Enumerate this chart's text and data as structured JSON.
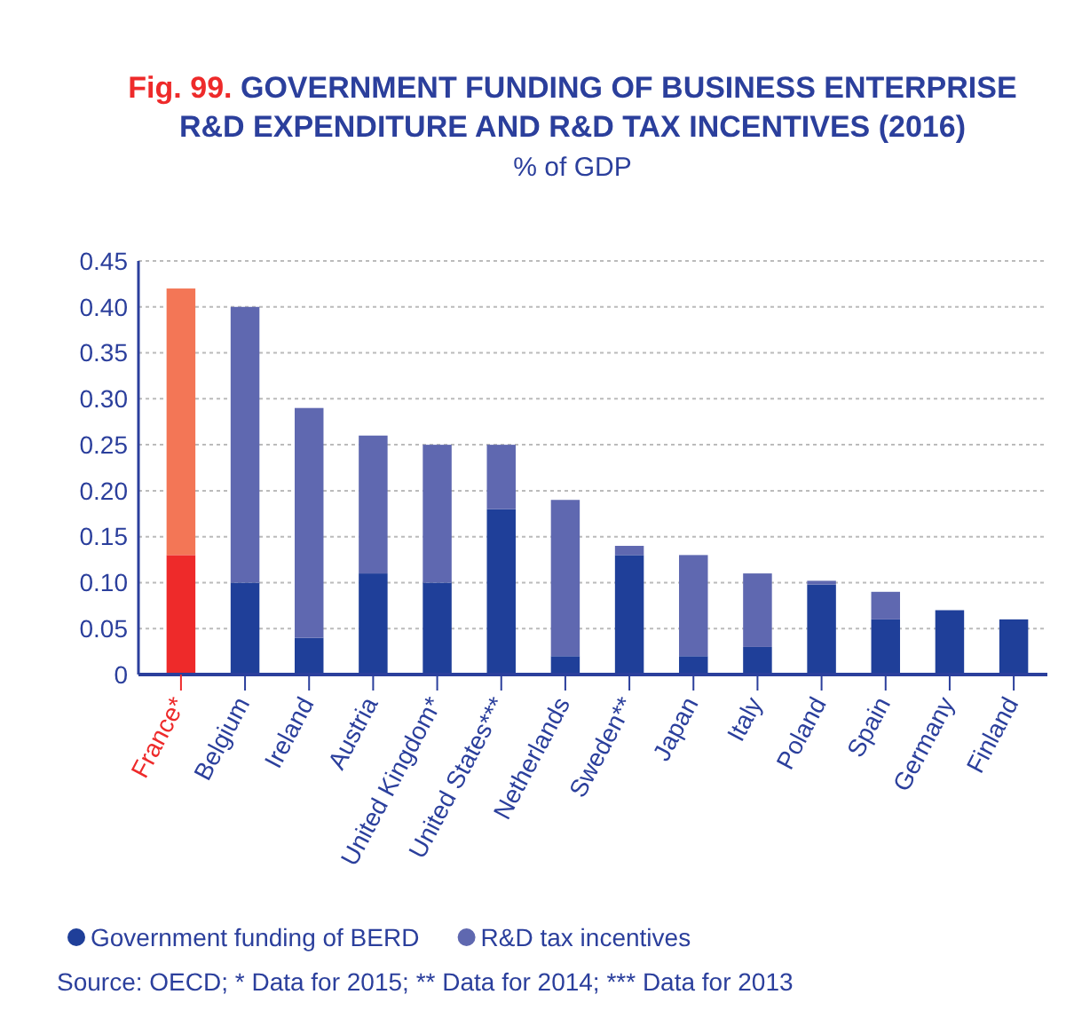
{
  "chart_data": {
    "type": "bar",
    "title": "Fig. 99. GOVERNMENT FUNDING OF BUSINESS ENTERPRISE R&D EXPENDITURE AND R&D TAX INCENTIVES (2016)",
    "subtitle": "% of GDP",
    "categories": [
      "France*",
      "Belgium",
      "Ireland",
      "Austria",
      "United Kingdom*",
      "United States***",
      "Netherlands",
      "Sweden**",
      "Japan",
      "Italy",
      "Poland",
      "Spain",
      "Germany",
      "Finland"
    ],
    "stacked": true,
    "series": [
      {
        "name": "Government funding of BERD",
        "color": "#1f3f99",
        "colors": [
          "#ee2a2a",
          "#1f3f99",
          "#1f3f99",
          "#1f3f99",
          "#1f3f99",
          "#1f3f99",
          "#1f3f99",
          "#1f3f99",
          "#1f3f99",
          "#1f3f99",
          "#1f3f99",
          "#1f3f99",
          "#1f3f99",
          "#1f3f99"
        ],
        "values": [
          0.13,
          0.1,
          0.04,
          0.11,
          0.1,
          0.18,
          0.02,
          0.13,
          0.02,
          0.03,
          0.098,
          0.06,
          0.07,
          0.06
        ]
      },
      {
        "name": "R&D tax incentives",
        "color": "#5f68b0",
        "colors": [
          "#f37656",
          "#5f68b0",
          "#5f68b0",
          "#5f68b0",
          "#5f68b0",
          "#5f68b0",
          "#5f68b0",
          "#5f68b0",
          "#5f68b0",
          "#5f68b0",
          "#5f68b0",
          "#5f68b0",
          "#5f68b0",
          "#5f68b0"
        ],
        "values": [
          0.29,
          0.3,
          0.25,
          0.15,
          0.15,
          0.07,
          0.17,
          0.01,
          0.11,
          0.08,
          0.004,
          0.03,
          0,
          0
        ]
      }
    ],
    "ylim": [
      0,
      0.45
    ],
    "yticks": [
      {
        "value": 0,
        "label": "0"
      },
      {
        "value": 0.05,
        "label": "0.05"
      },
      {
        "value": 0.1,
        "label": "0.10"
      },
      {
        "value": 0.15,
        "label": "0.15"
      },
      {
        "value": 0.2,
        "label": "0.20"
      },
      {
        "value": 0.25,
        "label": "0.25"
      },
      {
        "value": 0.3,
        "label": "0.30"
      },
      {
        "value": 0.35,
        "label": "0.35"
      },
      {
        "value": 0.4,
        "label": "0.40"
      },
      {
        "value": 0.45,
        "label": "0.45"
      }
    ],
    "grid": "y",
    "legend": "bottom",
    "annotations": [
      "Source: OECD; * Data for 2015; ** Data for 2014; *** Data for 2013"
    ]
  }
}
